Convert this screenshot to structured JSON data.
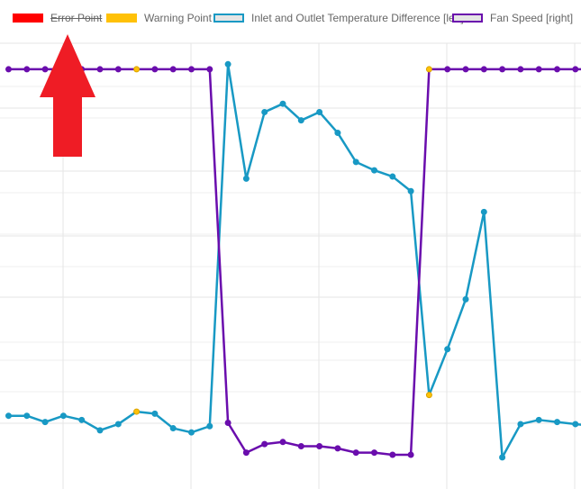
{
  "legend": {
    "items": [
      {
        "label": "Error Point",
        "swatch_fill": "#ff0000",
        "swatch_border": "#ff0000",
        "hidden": true
      },
      {
        "label": "Warning Point",
        "swatch_fill": "#ffc107",
        "swatch_border": "#ffc107",
        "hidden": false
      },
      {
        "label": "Inlet and Outlet Temperature Difference [left]",
        "swatch_fill": "#e5e5e5",
        "swatch_border": "#1899c4",
        "hidden": false
      },
      {
        "label": "Fan Speed [right]",
        "swatch_fill": "#e5e5e5",
        "swatch_border": "#6a0dad",
        "hidden": false
      }
    ]
  },
  "annotation": {
    "arrow_color": "#ef1c25",
    "arrow_icon": "up-arrow-icon"
  },
  "colors": {
    "temp_line": "#1899c4",
    "fan_line": "#6a0dad",
    "warning": "#ffc107",
    "grid": "#e6e6e6"
  },
  "chart_data": {
    "type": "line",
    "x": [
      0,
      1,
      2,
      3,
      4,
      5,
      6,
      7,
      8,
      9,
      10,
      11,
      12,
      13,
      14,
      15,
      16,
      17,
      18,
      19,
      20,
      21,
      22,
      23,
      24,
      25,
      26,
      27,
      28,
      29,
      30,
      31,
      32
    ],
    "ylim_left": [
      0,
      100
    ],
    "ylim_right": [
      0,
      100
    ],
    "series": [
      {
        "name": "Inlet and Outlet Temperature Difference [left]",
        "axis": "left",
        "values": [
          15.0,
          15.0,
          13.5,
          15.0,
          14.0,
          11.5,
          13.0,
          16.0,
          15.5,
          12.0,
          11.0,
          12.5,
          99.5,
          72.0,
          88.0,
          90.0,
          86.0,
          88.0,
          83.0,
          76.0,
          74.0,
          72.5,
          69.0,
          20.0,
          31.0,
          43.0,
          64.0,
          5.0,
          13.0,
          14.0,
          13.5,
          13.0,
          12.5
        ],
        "warning_indices": [
          7,
          23
        ]
      },
      {
        "name": "Fan Speed [right]",
        "axis": "right",
        "values": [
          96,
          96,
          96,
          96,
          96,
          96,
          96,
          96,
          96,
          96,
          96,
          96,
          13,
          6,
          8,
          8.5,
          7.5,
          7.5,
          7,
          6,
          6,
          5.5,
          5.5,
          96,
          96,
          96,
          96,
          96,
          96,
          96,
          96,
          96,
          96
        ],
        "warning_indices": [
          7,
          23
        ]
      }
    ]
  }
}
